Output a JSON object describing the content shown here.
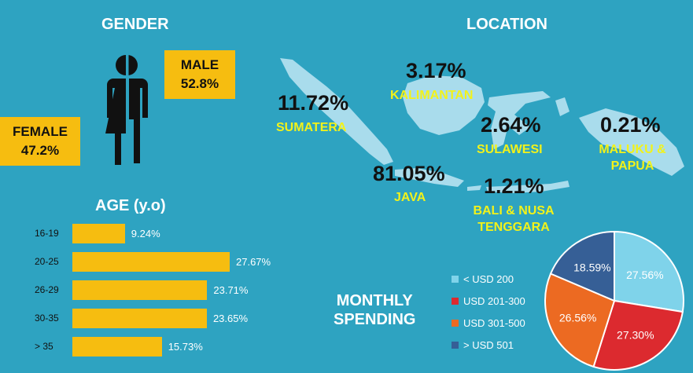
{
  "gender": {
    "title": "GENDER",
    "male_label": "MALE",
    "male_value": "52.8%",
    "female_label": "FEMALE",
    "female_value": "47.2%",
    "icon": "gender-restroom-icon"
  },
  "location": {
    "title": "LOCATION",
    "regions": [
      {
        "name": "SUMATERA",
        "value": "11.72%"
      },
      {
        "name": "KALIMANTAN",
        "value": "3.17%"
      },
      {
        "name": "SULAWESI",
        "value": "2.64%"
      },
      {
        "name": "MALUKU & PAPUA",
        "value": "0.21%"
      },
      {
        "name": "JAVA",
        "value": "81.05%"
      },
      {
        "name": "BALI & NUSA TENGGARA",
        "value": "1.21%"
      }
    ],
    "map": "indonesia-map"
  },
  "age": {
    "title": "AGE (y.o)"
  },
  "spending": {
    "title_line1": "MONTHLY",
    "title_line2": "SPENDING"
  },
  "colors": {
    "background": "#2ea3c1",
    "accent": "#f6bd10",
    "region_text": "#f2f21a",
    "map": "#a9dcec"
  },
  "chart_data": [
    {
      "type": "bar",
      "orientation": "horizontal",
      "title": "AGE (y.o)",
      "categories": [
        "16-19",
        "20-25",
        "26-29",
        "30-35",
        "> 35"
      ],
      "values": [
        9.24,
        27.67,
        23.71,
        23.65,
        15.73
      ],
      "value_labels": [
        "9.24%",
        "27.67%",
        "23.71%",
        "23.65%",
        "15.73%"
      ],
      "colors": [
        "#f6bd10"
      ]
    },
    {
      "type": "pie",
      "title": "MONTHLY SPENDING",
      "categories": [
        "< USD 200",
        "USD 201-300",
        "USD 301-500",
        "> USD 501"
      ],
      "values": [
        27.56,
        27.3,
        26.56,
        18.59
      ],
      "value_labels": [
        "27.56%",
        "27.30%",
        "26.56%",
        "18.59%"
      ],
      "colors": [
        "#7fd3ea",
        "#dc2a2f",
        "#ec6a22",
        "#365f96"
      ],
      "legend": "left"
    }
  ]
}
